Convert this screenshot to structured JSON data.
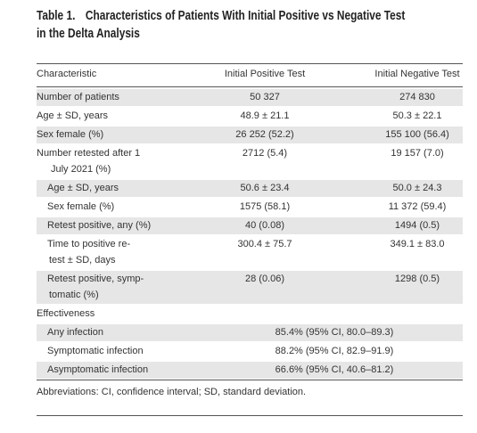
{
  "title": {
    "label": "Table 1.",
    "lines": [
      "Characteristics of Patients With Initial Positive vs Negative Test",
      "in the Delta Analysis"
    ]
  },
  "table": {
    "header": [
      "Characteristic",
      "Initial Positive Test",
      "Initial Negative Test"
    ],
    "rows": [
      {
        "label": [
          "Number of patients"
        ],
        "values": [
          "50 327",
          "274 830"
        ]
      },
      {
        "label": [
          "Age ± SD, years"
        ],
        "values": [
          "48.9 ± 21.1",
          "50.3 ± 22.1"
        ]
      },
      {
        "label": [
          "Sex female (%)"
        ],
        "values": [
          "26 252 (52.2)",
          "155 100 (56.4)"
        ]
      },
      {
        "label": [
          "Number retested after 1",
          "July 2021 (%)"
        ],
        "values": [
          "2712 (5.4)",
          "19 157 (7.0)"
        ]
      },
      {
        "label": [
          "Age ± SD, years"
        ],
        "values": [
          "50.6 ± 23.4",
          "50.0 ± 24.3"
        ],
        "indent": true
      },
      {
        "label": [
          "Sex female (%)"
        ],
        "values": [
          "1575 (58.1)",
          "11 372 (59.4)"
        ],
        "indent": true
      },
      {
        "label": [
          "Retest positive, any (%)"
        ],
        "values": [
          "40 (0.08)",
          "1494 (0.5)"
        ],
        "indent": true
      },
      {
        "label": [
          "Time to positive re-",
          "test ± SD, days"
        ],
        "values": [
          "300.4 ± 75.7",
          "349.1 ± 83.0"
        ],
        "indent": true
      },
      {
        "label": [
          "Retest positive, symp-",
          "tomatic (%)"
        ],
        "values": [
          "28 (0.06)",
          "1298 (0.5)"
        ],
        "indent": true
      },
      {
        "label": [
          "Effectiveness"
        ],
        "values": []
      },
      {
        "label": [
          "Any infection"
        ],
        "values": [
          "85.4% (95% CI, 80.0–89.3)"
        ],
        "indent": true
      },
      {
        "label": [
          "Symptomatic infection"
        ],
        "values": [
          "88.2% (95% CI, 82.9–91.9)"
        ],
        "indent": true
      },
      {
        "label": [
          "Asymptomatic infection"
        ],
        "values": [
          "66.6% (95% CI, 40.6–81.2)"
        ],
        "indent": true
      }
    ]
  },
  "footnote": "Abbreviations: CI, confidence interval; SD, standard deviation."
}
